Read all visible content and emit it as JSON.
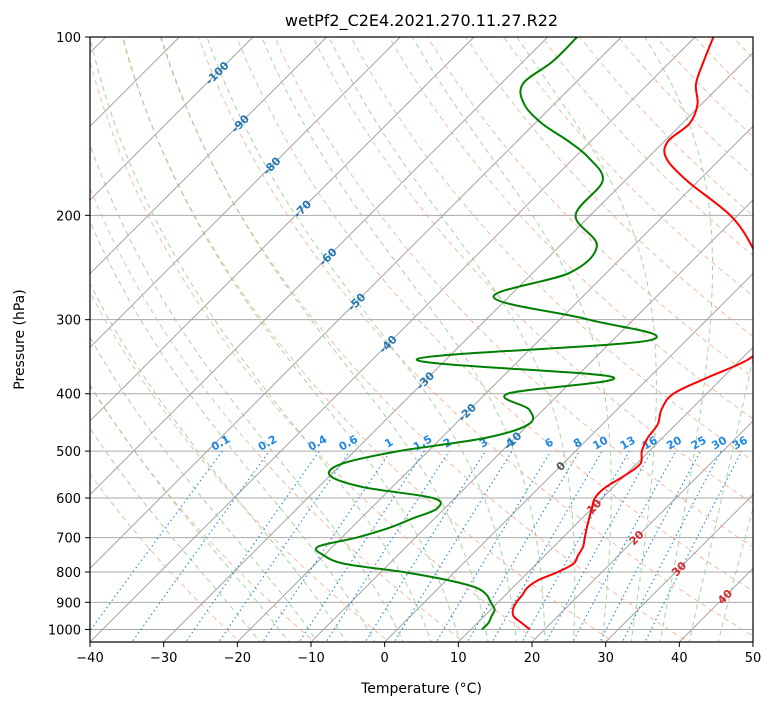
{
  "chart_data": {
    "type": "line",
    "title": "wetPf2_C2E4.2021.270.11.27.R22",
    "xlabel": "Temperature (°C)",
    "ylabel": "Pressure (hPa)",
    "xlim": [
      -40,
      50
    ],
    "ylim": [
      1050,
      100
    ],
    "y_scale": "log",
    "x_ticks": [
      -40,
      -30,
      -20,
      -10,
      0,
      10,
      20,
      30,
      40,
      50
    ],
    "y_ticks": [
      1000,
      900,
      800,
      700,
      600,
      500,
      400,
      300,
      200,
      100
    ],
    "grid": true,
    "skew": 45,
    "series": [
      {
        "color": "#ff0000",
        "pressure": [
          1000,
          975,
          950,
          925,
          900,
          875,
          850,
          825,
          800,
          775,
          750,
          725,
          700,
          675,
          650,
          625,
          600,
          575,
          550,
          525,
          500,
          475,
          450,
          425,
          400,
          375,
          350,
          325,
          300,
          275,
          250,
          225,
          200,
          175,
          160,
          150,
          140,
          130,
          120,
          110,
          100
        ],
        "temperature": [
          18.0,
          16.0,
          14.0,
          13.0,
          12.5,
          12.3,
          12.0,
          12.5,
          14.0,
          15.0,
          14.5,
          14.0,
          13.0,
          12.0,
          11.0,
          10.0,
          9.0,
          9.0,
          10.0,
          10.5,
          9.0,
          8.0,
          7.5,
          6.0,
          5.5,
          8.0,
          11.0,
          11.0,
          9.0,
          5.5,
          1.0,
          -4.0,
          -11.0,
          -21.5,
          -27.5,
          -29.5,
          -29.0,
          -30.5,
          -33.5,
          -35.5,
          -37.5
        ]
      },
      {
        "color": "#008000",
        "pressure": [
          1000,
          975,
          950,
          925,
          900,
          875,
          850,
          825,
          800,
          775,
          750,
          725,
          700,
          675,
          650,
          625,
          600,
          575,
          550,
          525,
          500,
          475,
          450,
          425,
          400,
          375,
          350,
          325,
          300,
          275,
          250,
          225,
          200,
          175,
          160,
          150,
          140,
          130,
          120,
          110,
          100
        ],
        "dewpoint": [
          11.5,
          11.5,
          11.0,
          10.5,
          9.0,
          7.5,
          5.0,
          0.0,
          -7.0,
          -16.0,
          -20.0,
          -22.0,
          -18.0,
          -15.0,
          -13.0,
          -11.0,
          -13.0,
          -24.0,
          -30.0,
          -30.0,
          -24.0,
          -14.0,
          -10.0,
          -12.0,
          -17.0,
          -5.0,
          -34.0,
          -5.0,
          -16.0,
          -32.0,
          -25.0,
          -25.0,
          -32.0,
          -33.0,
          -38.0,
          -43.0,
          -49.0,
          -54.0,
          -57.0,
          -56.0,
          -56.0
        ]
      }
    ],
    "dry_adiabats": [
      -100,
      -90,
      -80,
      -70,
      -60,
      -50,
      -40,
      -30,
      -20,
      -10
    ],
    "dry_adiabat_labels": [
      "-100",
      "-90",
      "-80",
      "-70",
      "-60",
      "-50",
      "-40",
      "-30",
      "-20",
      "-10"
    ],
    "moist_adiabats": [
      0,
      10,
      20,
      30,
      40
    ],
    "moist_adiabat_labels": [
      "0",
      "10",
      "20",
      "30",
      "40"
    ],
    "mixing_ratios": [
      0.1,
      0.2,
      0.4,
      0.6,
      1,
      1.5,
      2,
      3,
      4,
      6,
      8,
      10,
      13,
      16,
      20,
      25,
      30,
      36
    ],
    "mixing_ratio_labels": [
      "0.1",
      "0.2",
      "0.4",
      "0.6",
      "1",
      "1.5",
      "2",
      "3",
      "4",
      "6",
      "8",
      "10",
      "13",
      "16",
      "20",
      "25",
      "30",
      "36"
    ],
    "colors": {
      "temperature": "#ff0000",
      "dewpoint": "#008000",
      "isotherm": "#888888",
      "dry_adiabat": "#f4a582",
      "moist_adiabat": "#8fc98f",
      "mixing_ratio": "#1e88e5",
      "dry_label": "#1f77b4",
      "moist_label": "#d62728",
      "zero_label": "#555555"
    }
  }
}
